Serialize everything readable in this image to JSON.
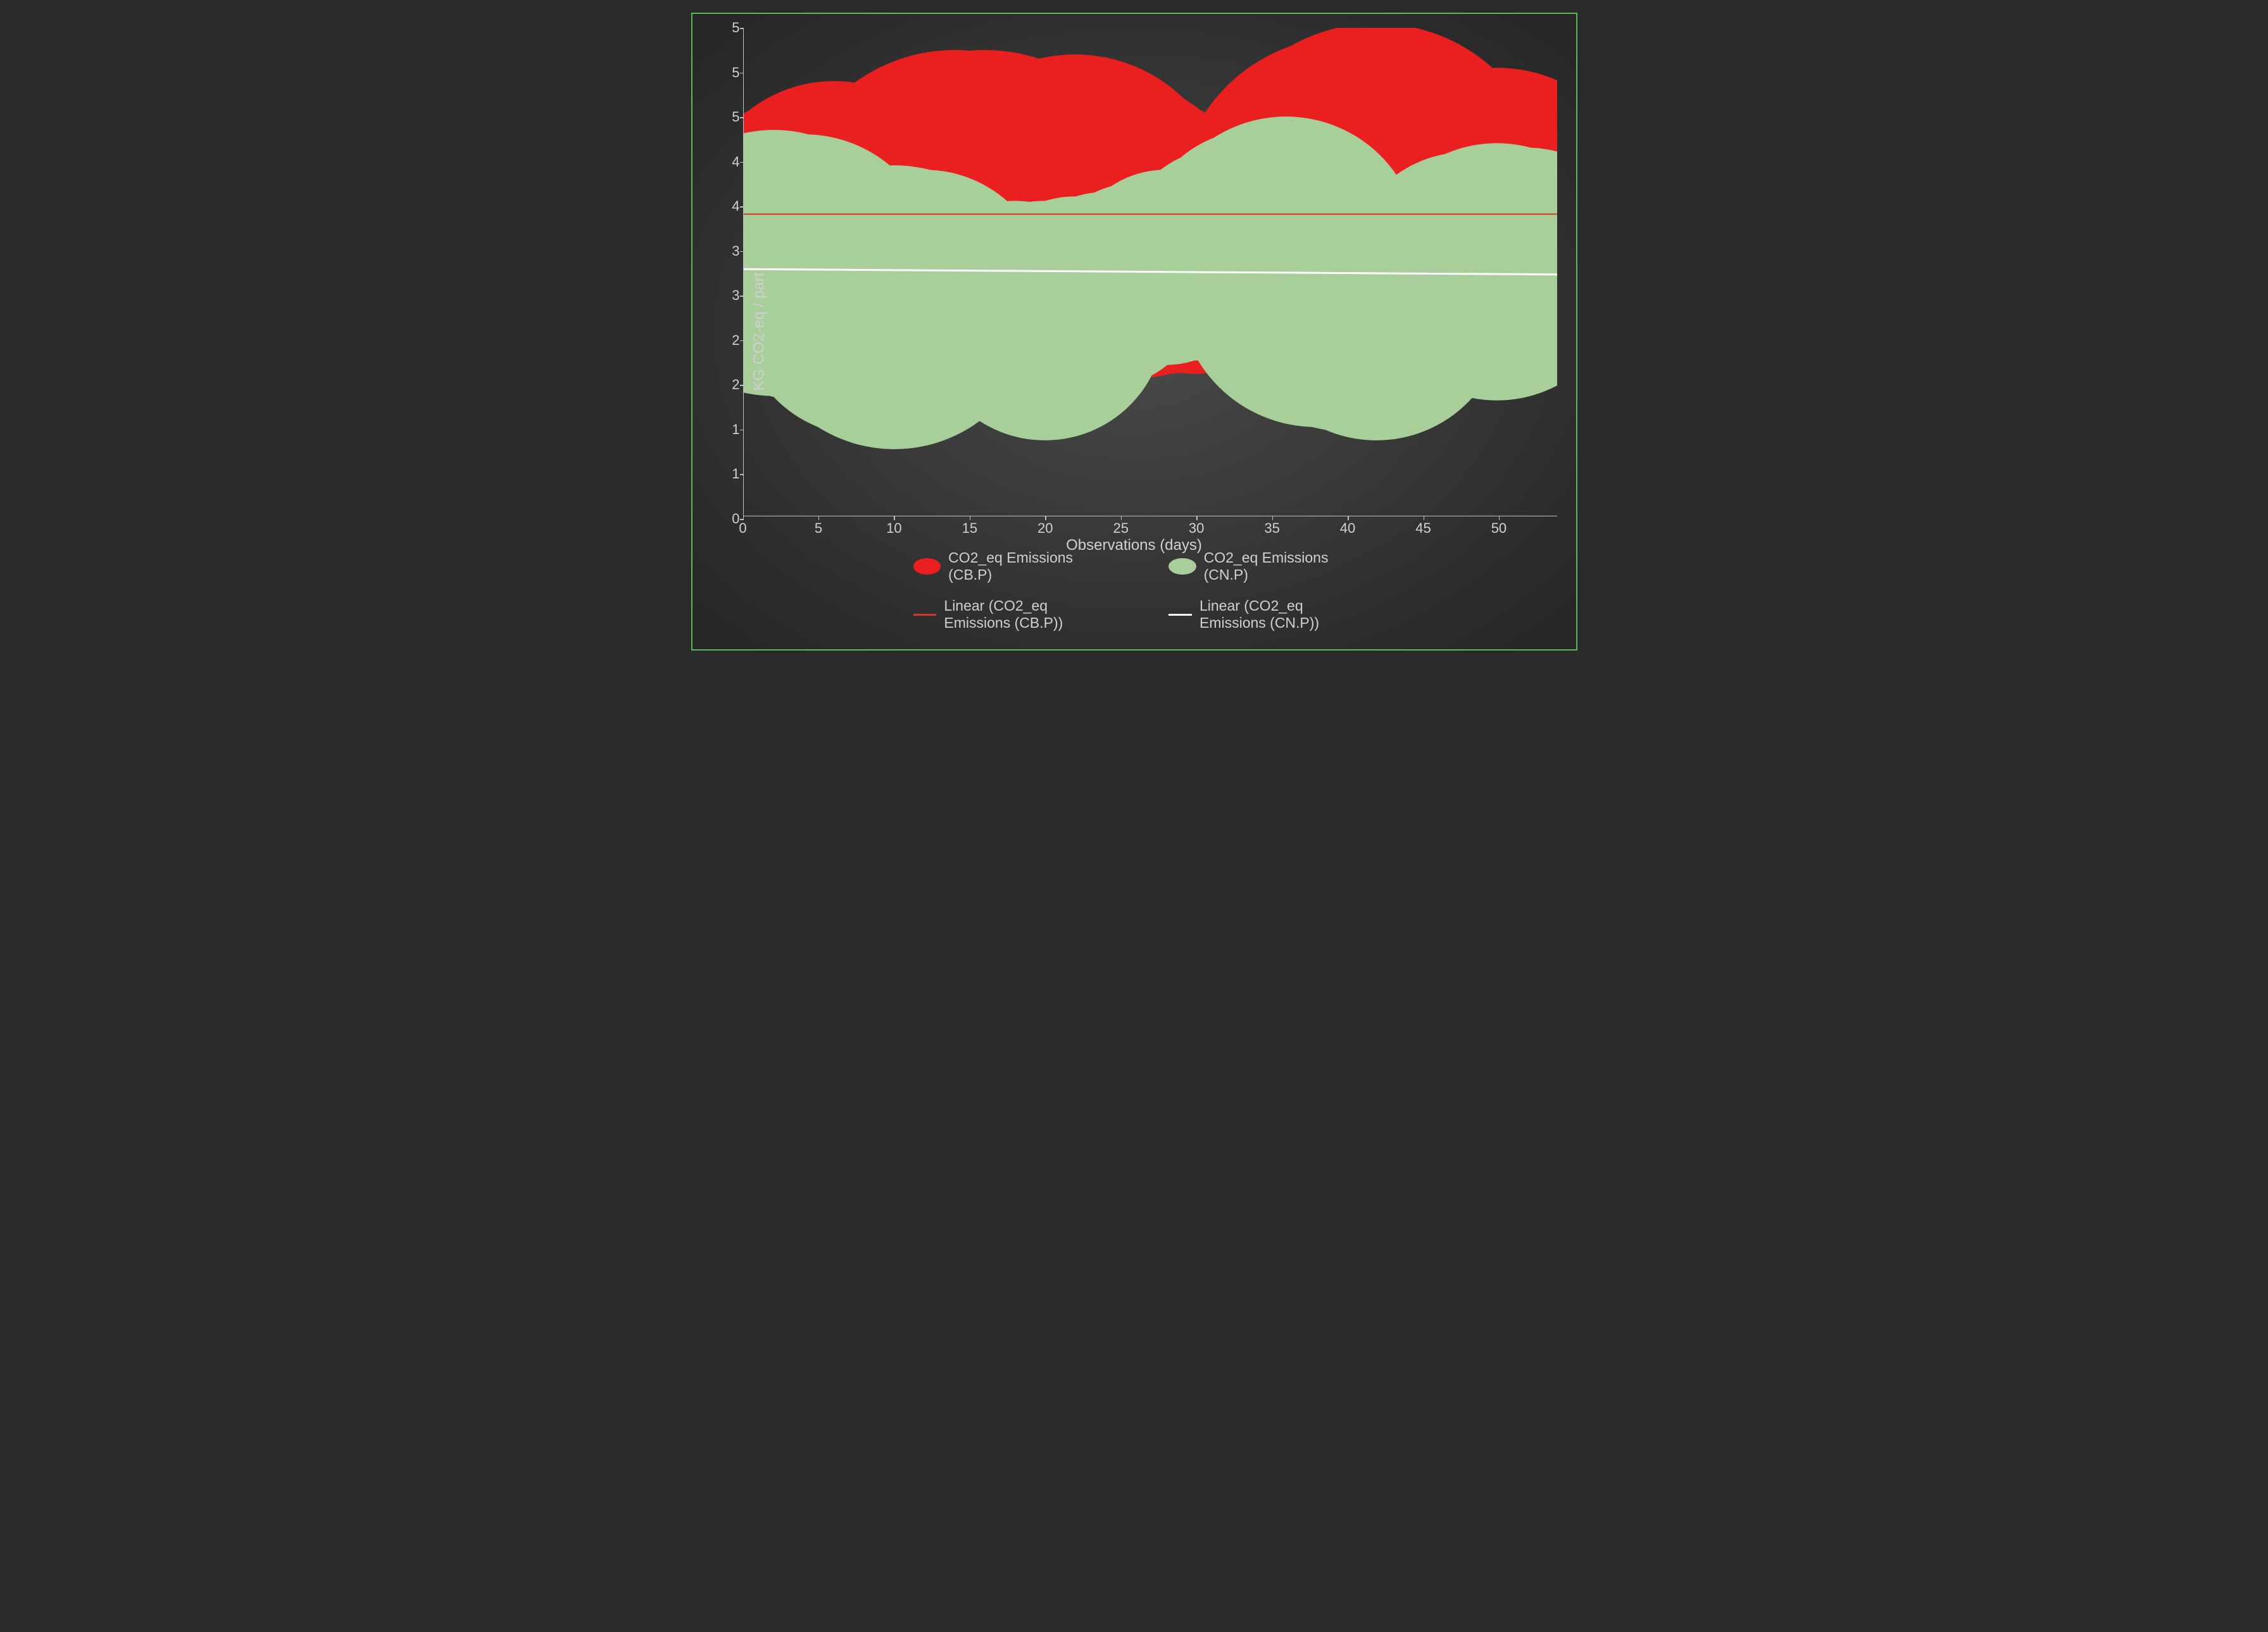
{
  "chart": {
    "type": "bubble-band-with-trendlines",
    "background_gradient": {
      "center": "#4a4a4a",
      "edge": "#262626"
    },
    "border_color": "#5bb85b",
    "x_axis": {
      "label": "Observations (days)",
      "min": 0,
      "max": 54,
      "ticks": [
        0,
        5,
        10,
        15,
        20,
        25,
        30,
        35,
        40,
        45,
        50
      ],
      "tick_labels": [
        "0",
        "5",
        "10",
        "15",
        "20",
        "25",
        "30",
        "35",
        "40",
        "45",
        "50"
      ],
      "label_fontsize": 24,
      "tick_fontsize": 22,
      "label_color": "#d0d0d0",
      "axis_line_color": "#bfbfbf"
    },
    "y_axis": {
      "label": "KG CO2-eq / part",
      "min": 0,
      "max": 5.5,
      "ticks": [
        0,
        0.5,
        1,
        1.5,
        2,
        2.5,
        3,
        3.5,
        4,
        4.5,
        5,
        5.5
      ],
      "tick_labels": [
        "0",
        "1",
        "1",
        "2",
        "2",
        "3",
        "3",
        "4",
        "4",
        "5",
        "5",
        "5"
      ],
      "label_fontsize": 24,
      "tick_fontsize": 22,
      "label_color": "#d0d0d0",
      "axis_line_color": "#bfbfbf"
    },
    "series": [
      {
        "name": "CO2_eq Emissions (CB.P)",
        "color": "#ea2020",
        "type": "bubble-band",
        "points": [
          {
            "x": 0,
            "y": 3.0,
            "r": 1.3
          },
          {
            "x": 2,
            "y": 2.9,
            "r": 1.2
          },
          {
            "x": 4,
            "y": 3.2,
            "r": 1.5
          },
          {
            "x": 6,
            "y": 3.35,
            "r": 1.55
          },
          {
            "x": 8,
            "y": 2.85,
            "r": 1.25
          },
          {
            "x": 10,
            "y": 3.0,
            "r": 1.3
          },
          {
            "x": 12,
            "y": 3.3,
            "r": 1.6
          },
          {
            "x": 14,
            "y": 3.35,
            "r": 1.9
          },
          {
            "x": 16,
            "y": 3.3,
            "r": 1.95
          },
          {
            "x": 18,
            "y": 3.2,
            "r": 1.8
          },
          {
            "x": 20,
            "y": 3.4,
            "r": 1.75
          },
          {
            "x": 22,
            "y": 3.45,
            "r": 1.75
          },
          {
            "x": 24,
            "y": 3.25,
            "r": 1.7
          },
          {
            "x": 26,
            "y": 3.15,
            "r": 1.6
          },
          {
            "x": 28,
            "y": 3.0,
            "r": 1.4
          },
          {
            "x": 30,
            "y": 3.0,
            "r": 1.4
          },
          {
            "x": 32,
            "y": 3.05,
            "r": 1.45
          },
          {
            "x": 34,
            "y": 3.1,
            "r": 1.3
          },
          {
            "x": 36,
            "y": 3.05,
            "r": 1.05
          },
          {
            "x": 38,
            "y": 3.0,
            "r": 0.95
          },
          {
            "x": 40,
            "y": 3.5,
            "r": 1.9
          },
          {
            "x": 42,
            "y": 3.6,
            "r": 1.95
          },
          {
            "x": 44,
            "y": 3.4,
            "r": 1.7
          },
          {
            "x": 46,
            "y": 3.3,
            "r": 1.6
          },
          {
            "x": 48,
            "y": 3.3,
            "r": 1.65
          },
          {
            "x": 50,
            "y": 3.35,
            "r": 1.7
          },
          {
            "x": 52,
            "y": 3.3,
            "r": 1.6
          },
          {
            "x": 54,
            "y": 3.0,
            "r": 1.35
          }
        ]
      },
      {
        "name": "CO2_eq Emissions (CN.P)",
        "color": "#a8cf9a",
        "type": "bubble-band",
        "points": [
          {
            "x": 0,
            "y": 2.9,
            "r": 1.4
          },
          {
            "x": 2,
            "y": 2.85,
            "r": 1.5
          },
          {
            "x": 4,
            "y": 2.8,
            "r": 1.5
          },
          {
            "x": 6,
            "y": 2.5,
            "r": 1.2
          },
          {
            "x": 8,
            "y": 2.3,
            "r": 1.4
          },
          {
            "x": 10,
            "y": 2.35,
            "r": 1.6
          },
          {
            "x": 12,
            "y": 2.5,
            "r": 1.4
          },
          {
            "x": 14,
            "y": 2.4,
            "r": 1.15
          },
          {
            "x": 16,
            "y": 2.35,
            "r": 1.1
          },
          {
            "x": 18,
            "y": 2.3,
            "r": 1.25
          },
          {
            "x": 20,
            "y": 2.2,
            "r": 1.35
          },
          {
            "x": 22,
            "y": 2.45,
            "r": 1.15
          },
          {
            "x": 24,
            "y": 2.55,
            "r": 1.1
          },
          {
            "x": 26,
            "y": 2.7,
            "r": 1.05
          },
          {
            "x": 28,
            "y": 2.8,
            "r": 1.1
          },
          {
            "x": 30,
            "y": 2.85,
            "r": 1.1
          },
          {
            "x": 32,
            "y": 2.95,
            "r": 1.2
          },
          {
            "x": 34,
            "y": 3.05,
            "r": 1.3
          },
          {
            "x": 36,
            "y": 3.0,
            "r": 1.5
          },
          {
            "x": 38,
            "y": 2.55,
            "r": 1.55
          },
          {
            "x": 40,
            "y": 2.45,
            "r": 1.5
          },
          {
            "x": 42,
            "y": 2.3,
            "r": 1.45
          },
          {
            "x": 44,
            "y": 2.55,
            "r": 1.2
          },
          {
            "x": 46,
            "y": 2.75,
            "r": 1.15
          },
          {
            "x": 48,
            "y": 2.75,
            "r": 1.35
          },
          {
            "x": 50,
            "y": 2.75,
            "r": 1.45
          },
          {
            "x": 52,
            "y": 2.85,
            "r": 1.3
          },
          {
            "x": 54,
            "y": 2.9,
            "r": 1.15
          }
        ]
      }
    ],
    "trendlines": [
      {
        "name": "Linear (CO2_eq Emissions (CB.P))",
        "color": "#d43a2a",
        "y_start": 3.4,
        "y_end": 3.4,
        "width": 2
      },
      {
        "name": "Linear (CO2_eq Emissions (CN.P))",
        "color": "#ffffff",
        "y_start": 2.78,
        "y_end": 2.72,
        "width": 3
      }
    ],
    "legend": {
      "bubble_items": [
        {
          "label": "CO2_eq Emissions (CB.P)",
          "color": "#ea2020"
        },
        {
          "label": "CO2_eq Emissions (CN.P)",
          "color": "#a8cf9a"
        }
      ],
      "line_items": [
        {
          "label": "Linear (CO2_eq Emissions (CB.P))",
          "color": "#d43a2a"
        },
        {
          "label": "Linear (CO2_eq Emissions (CN.P))",
          "color": "#ffffff"
        }
      ],
      "fontsize": 23,
      "text_color": "#d0d0d0"
    }
  }
}
